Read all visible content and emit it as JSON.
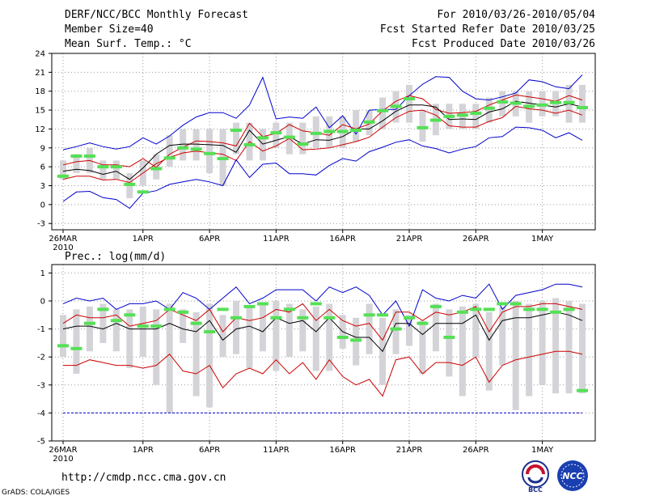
{
  "header": {
    "title": "DERF/NCC/BCC Monthly Forecast",
    "member_size": "Member Size=40",
    "variable": "Mean Surf. Temp.: °C",
    "for_range": "For 2010/03/26-2010/05/04",
    "started": "Fcst Started Refer Date 2010/03/25",
    "produced": "Fcst Produced Date 2010/03/26"
  },
  "footer": {
    "url": "http://cmdp.ncc.cma.gov.cn",
    "credit": "GrADS: COLA/IGES",
    "logo_left": "BCC",
    "logo_right": "NCC"
  },
  "colors": {
    "outer": "#0000cc",
    "inner": "#cc0000",
    "mean": "#000000",
    "box": "#d4d4d8",
    "observed": "#55e055"
  },
  "chart_data": [
    {
      "type": "line",
      "title": "Mean Surf. Temp.: °C",
      "xlabel": "",
      "ylabel": "°C",
      "ylim": [
        -4,
        24
      ],
      "yticks": [
        -3,
        0,
        3,
        6,
        9,
        12,
        15,
        18,
        21,
        24
      ],
      "grid": true,
      "x_labels": [
        {
          "day": 0,
          "label": "26MAR",
          "sub": "2010"
        },
        {
          "day": 6,
          "label": "1APR"
        },
        {
          "day": 11,
          "label": "6APR"
        },
        {
          "day": 16,
          "label": "11APR"
        },
        {
          "day": 21,
          "label": "16APR"
        },
        {
          "day": 26,
          "label": "21APR"
        },
        {
          "day": 31,
          "label": "26APR"
        },
        {
          "day": 36,
          "label": "1MAY"
        }
      ],
      "days": 40,
      "series": [
        {
          "name": "max",
          "values": [
            8.7,
            9.2,
            9.8,
            9.2,
            8.8,
            9.2,
            10.6,
            9.6,
            10.9,
            12.6,
            13.9,
            14.6,
            14.6,
            13.7,
            15.8,
            20.2,
            13.6,
            13.9,
            13.7,
            15.5,
            12.2,
            14.1,
            11.2,
            15.0,
            15.1,
            15.1,
            17.3,
            19.1,
            20.3,
            20.2,
            18.0,
            16.8,
            16.6,
            17.1,
            17.7,
            19.8,
            19.5,
            18.7,
            18.4,
            20.6
          ]
        },
        {
          "name": "inner_upper",
          "values": [
            6.3,
            6.8,
            7.0,
            6.3,
            6.3,
            6.0,
            7.3,
            5.9,
            8.0,
            9.1,
            10.1,
            10.0,
            9.8,
            9.3,
            12.9,
            10.8,
            11.3,
            12.7,
            11.7,
            11.4,
            11.0,
            12.7,
            12.0,
            12.8,
            14.9,
            16.4,
            17.3,
            16.8,
            15.1,
            14.5,
            14.6,
            14.8,
            15.8,
            16.6,
            17.4,
            17.1,
            16.8,
            16.4,
            17.3,
            16.6
          ]
        },
        {
          "name": "mean",
          "values": [
            5.3,
            5.6,
            5.4,
            4.8,
            5.3,
            4.0,
            5.8,
            8.0,
            9.4,
            9.6,
            9.6,
            9.5,
            9.4,
            8.3,
            11.8,
            9.6,
            10.2,
            10.8,
            9.6,
            10.3,
            10.2,
            10.8,
            12.0,
            12.0,
            13.3,
            14.8,
            15.8,
            15.8,
            15.5,
            13.5,
            13.6,
            13.5,
            14.7,
            15.2,
            16.4,
            16.1,
            15.8,
            15.5,
            16.0,
            15.5
          ]
        },
        {
          "name": "inner_lower",
          "values": [
            4.0,
            4.5,
            4.5,
            3.9,
            4.0,
            3.5,
            5.0,
            6.5,
            7.5,
            8.2,
            8.5,
            8.2,
            8.0,
            7.0,
            10.0,
            8.5,
            9.3,
            10.5,
            8.7,
            8.8,
            9.0,
            9.5,
            10.0,
            10.7,
            12.3,
            13.8,
            14.8,
            15.0,
            14.2,
            12.5,
            12.3,
            12.3,
            13.2,
            13.8,
            15.6,
            15.2,
            15.0,
            14.5,
            15.0,
            14.2
          ]
        },
        {
          "name": "min",
          "values": [
            0.5,
            2.0,
            2.1,
            1.1,
            0.8,
            -0.6,
            1.8,
            2.2,
            3.2,
            3.6,
            4.0,
            3.6,
            3.0,
            7.1,
            4.3,
            6.4,
            6.6,
            4.9,
            4.9,
            4.7,
            6.2,
            7.3,
            6.9,
            8.4,
            9.1,
            9.9,
            10.3,
            9.3,
            8.9,
            8.2,
            8.8,
            9.2,
            10.6,
            10.8,
            12.3,
            12.2,
            11.8,
            10.6,
            11.4,
            10.2
          ]
        },
        {
          "name": "observed",
          "values": [
            4.5,
            7.7,
            7.7,
            6.0,
            6.0,
            3.2,
            2.0,
            5.7,
            7.4,
            9.0,
            8.8,
            8.1,
            7.3,
            11.8,
            9.5,
            10.6,
            11.4,
            10.7,
            9.6,
            11.3,
            11.6,
            11.6,
            11.8,
            13.1,
            14.9,
            15.6,
            16.8,
            12.2,
            13.4,
            14.0,
            14.2,
            14.5,
            15.3,
            16.3,
            16.1,
            15.6,
            15.8,
            16.2,
            16.2,
            15.4
          ]
        }
      ],
      "box_low": [
        4.0,
        5.0,
        5.0,
        4.0,
        4.0,
        1.0,
        3.0,
        4.0,
        6.0,
        7.0,
        7.0,
        5.0,
        3.0,
        8.0,
        7.0,
        7.0,
        9.0,
        8.0,
        8.0,
        9.0,
        9.0,
        9.0,
        10.0,
        11.0,
        12.0,
        13.0,
        13.0,
        10.0,
        11.0,
        12.0,
        12.0,
        12.0,
        13.0,
        14.0,
        14.0,
        13.0,
        14.0,
        14.0,
        13.0,
        13.0
      ],
      "box_high": [
        7.0,
        8.0,
        9.0,
        7.0,
        7.0,
        5.0,
        7.0,
        8.0,
        11.0,
        12.0,
        12.0,
        12.0,
        12.0,
        13.0,
        13.0,
        12.0,
        13.0,
        13.0,
        13.0,
        14.0,
        14.0,
        14.0,
        15.0,
        15.0,
        17.0,
        18.0,
        19.0,
        15.0,
        16.0,
        16.0,
        16.0,
        16.0,
        17.0,
        18.0,
        18.0,
        18.0,
        18.0,
        18.0,
        19.0,
        19.0
      ]
    },
    {
      "type": "line",
      "title": "Prec.: log(mm/d)",
      "xlabel": "",
      "ylabel": "log(mm/d)",
      "ylim": [
        -5,
        1.3
      ],
      "yticks": [
        -5,
        -4,
        -3,
        -2,
        -1,
        0,
        1
      ],
      "grid": true,
      "x_labels": [
        {
          "day": 0,
          "label": "26MAR",
          "sub": "2010"
        },
        {
          "day": 6,
          "label": "1APR"
        },
        {
          "day": 11,
          "label": "6APR"
        },
        {
          "day": 16,
          "label": "11APR"
        },
        {
          "day": 21,
          "label": "16APR"
        },
        {
          "day": 26,
          "label": "21APR"
        },
        {
          "day": 31,
          "label": "26APR"
        },
        {
          "day": 36,
          "label": "1MAY"
        }
      ],
      "days": 40,
      "series": [
        {
          "name": "max",
          "values": [
            -0.1,
            0.1,
            0.0,
            0.1,
            -0.3,
            -0.1,
            -0.1,
            0.0,
            -0.3,
            0.3,
            0.1,
            -0.3,
            0.1,
            0.5,
            -0.1,
            0.1,
            0.4,
            0.4,
            0.4,
            0.0,
            0.5,
            0.3,
            0.5,
            0.2,
            -0.5,
            0.0,
            -0.9,
            0.4,
            0.1,
            0.0,
            0.2,
            0.1,
            0.6,
            -0.3,
            0.2,
            0.3,
            0.4,
            0.6,
            0.6,
            0.5
          ]
        },
        {
          "name": "inner_upper",
          "values": [
            -0.8,
            -0.5,
            -0.6,
            -0.6,
            -0.5,
            -0.9,
            -0.8,
            -0.7,
            -0.3,
            -0.5,
            -0.7,
            -0.3,
            -1.1,
            -0.6,
            -0.7,
            -0.6,
            -0.3,
            -0.4,
            -0.1,
            -0.7,
            -0.3,
            -0.7,
            -0.9,
            -0.8,
            -1.4,
            -0.4,
            -0.4,
            -0.7,
            -0.4,
            -0.5,
            -0.4,
            -0.2,
            -1.1,
            -0.4,
            -0.2,
            -0.2,
            -0.1,
            -0.1,
            -0.2,
            -0.3
          ]
        },
        {
          "name": "mean",
          "values": [
            -1.0,
            -0.9,
            -0.9,
            -1.0,
            -0.8,
            -1.0,
            -1.0,
            -1.0,
            -0.8,
            -1.0,
            -1.1,
            -0.7,
            -1.4,
            -1.0,
            -0.9,
            -1.1,
            -0.6,
            -0.8,
            -0.7,
            -1.1,
            -0.6,
            -1.1,
            -1.3,
            -1.3,
            -1.8,
            -0.8,
            -0.8,
            -1.2,
            -0.8,
            -0.8,
            -0.8,
            -0.5,
            -1.4,
            -0.7,
            -0.6,
            -0.6,
            -0.5,
            -0.4,
            -0.5,
            -0.7
          ]
        },
        {
          "name": "inner_lower",
          "values": [
            -2.3,
            -2.3,
            -2.1,
            -2.2,
            -2.3,
            -2.3,
            -2.4,
            -2.3,
            -1.9,
            -2.5,
            -2.6,
            -2.3,
            -3.1,
            -2.6,
            -2.4,
            -2.6,
            -2.1,
            -2.6,
            -2.2,
            -2.8,
            -2.1,
            -2.7,
            -3.0,
            -2.8,
            -3.4,
            -2.1,
            -2.0,
            -2.6,
            -2.2,
            -2.2,
            -2.3,
            -2.0,
            -2.9,
            -2.3,
            -2.1,
            -2.0,
            -1.9,
            -1.8,
            -1.8,
            -1.9
          ]
        },
        {
          "name": "min",
          "values": [
            -4.0,
            -4.0,
            -4.0,
            -4.0,
            -4.0,
            -4.0,
            -4.0,
            -4.0,
            -4.0,
            -4.0,
            -4.0,
            -4.0,
            -4.0,
            -4.0,
            -4.0,
            -4.0,
            -4.0,
            -4.0,
            -4.0,
            -4.0,
            -4.0,
            -4.0,
            -4.0,
            -4.0,
            -4.0,
            -4.0,
            -4.0,
            -4.0,
            -4.0,
            -4.0,
            -4.0,
            -4.0,
            -4.0,
            -4.0,
            -4.0,
            -4.0,
            -4.0,
            -4.0,
            -4.0,
            -4.0
          ]
        },
        {
          "name": "observed",
          "values": [
            -1.6,
            -1.7,
            -0.8,
            -0.3,
            -0.7,
            -0.5,
            -0.9,
            -0.9,
            -0.3,
            -0.4,
            -0.8,
            -1.1,
            -0.3,
            -0.6,
            -0.2,
            -0.1,
            -0.6,
            -0.3,
            -0.6,
            -0.1,
            -0.6,
            -1.3,
            -1.4,
            -0.5,
            -0.5,
            -1.0,
            -0.6,
            -0.8,
            -0.2,
            -1.3,
            -0.4,
            -0.3,
            -0.3,
            -0.1,
            -0.1,
            -0.3,
            -0.3,
            -0.4,
            -0.3,
            -3.2
          ]
        }
      ],
      "box_low": [
        -2.0,
        -2.6,
        -1.8,
        -1.5,
        -1.8,
        -2.4,
        -2.0,
        -3.0,
        -4.0,
        -1.5,
        -3.4,
        -3.8,
        -2.0,
        -1.9,
        -2.4,
        -1.8,
        -2.5,
        -2.0,
        -1.8,
        -2.5,
        -2.5,
        -1.7,
        -2.3,
        -1.9,
        -3.0,
        -1.9,
        -1.6,
        -2.6,
        -1.8,
        -2.7,
        -3.4,
        -2.0,
        -3.2,
        -2.3,
        -3.9,
        -3.4,
        -3.0,
        -3.3,
        -3.3,
        -3.3
      ],
      "box_high": [
        -0.5,
        -0.3,
        -0.2,
        -0.1,
        -0.3,
        -0.3,
        -0.2,
        -0.3,
        -0.1,
        -0.3,
        -0.4,
        -0.1,
        -0.5,
        0.0,
        -0.2,
        -0.1,
        0.0,
        -0.1,
        -0.3,
        -0.2,
        -0.1,
        -0.5,
        -0.6,
        -0.1,
        -0.6,
        -0.3,
        -0.5,
        -0.7,
        -0.1,
        -0.3,
        -0.2,
        -0.1,
        -0.4,
        -0.2,
        0.0,
        -0.1,
        0.0,
        0.1,
        0.0,
        -0.1
      ]
    }
  ]
}
